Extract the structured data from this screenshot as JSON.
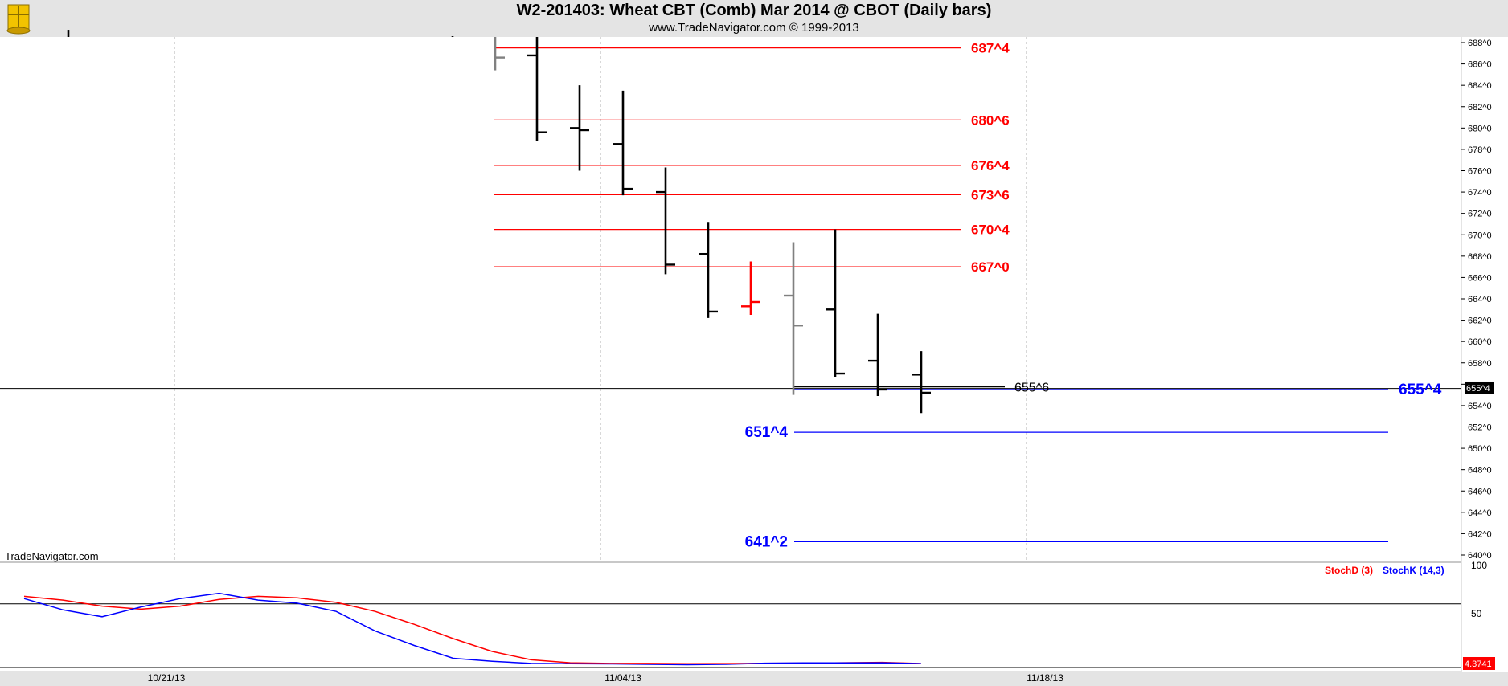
{
  "header": {
    "title": "W2-201403:  Wheat CBT (Comb) Mar 2014 @ CBOT  (Daily bars)",
    "copyright": "www.TradeNavigator.com © 1999-2013"
  },
  "watermark": "TradeNavigator.com",
  "colors": {
    "background": "#ffffff",
    "header_bg": "#e4e4e4",
    "up_bar": "#000000",
    "highlight_bar": "#ff0000",
    "gray_bar": "#808080",
    "resistance": "#ff0000",
    "support": "#0000ff",
    "stochD": "#ff0000",
    "stochK": "#0000ff"
  },
  "chart_data": [
    {
      "type": "ohlc",
      "title": "W2-201403:  Wheat CBT (Comb) Mar 2014 @ CBOT  (Daily bars)",
      "price_format": "eighths",
      "ylim": [
        638.5,
        689.5
      ],
      "x_tick_labels": [
        "10/21/13",
        "11/04/13",
        "11/18/13"
      ],
      "y_tick_labels": [
        "688^0",
        "686^0",
        "684^0",
        "682^0",
        "680^0",
        "678^0",
        "676^0",
        "674^0",
        "672^0",
        "670^0",
        "668^0",
        "666^0",
        "664^0",
        "662^0",
        "660^0",
        "658^0",
        "656^0",
        "654^0",
        "652^0",
        "650^0",
        "648^0",
        "646^0",
        "644^0",
        "642^0",
        "640^0"
      ],
      "bars": [
        {
          "date": "10/18/13",
          "o": null,
          "h": 689.8,
          "l": 689.2,
          "c": null,
          "color": "black"
        },
        {
          "date": "10/30/13",
          "o": null,
          "h": 689.5,
          "l": 688.6,
          "c": null,
          "color": "black"
        },
        {
          "date": "10/31/13",
          "o": null,
          "h": 689.9,
          "l": 685.4,
          "c": 686.6,
          "color": "gray"
        },
        {
          "date": "11/01/13",
          "o": 686.8,
          "h": 689.5,
          "l": 678.8,
          "c": 679.6,
          "color": "black"
        },
        {
          "date": "11/04/13",
          "o": 680.0,
          "h": 684.0,
          "l": 676.0,
          "c": 679.8,
          "color": "black"
        },
        {
          "date": "11/05/13",
          "o": 678.5,
          "h": 683.5,
          "l": 673.7,
          "c": 674.3,
          "color": "black"
        },
        {
          "date": "11/06/13",
          "o": 674.0,
          "h": 676.3,
          "l": 666.3,
          "c": 667.2,
          "color": "black"
        },
        {
          "date": "11/07/13",
          "o": 668.2,
          "h": 671.2,
          "l": 662.2,
          "c": 662.8,
          "color": "black"
        },
        {
          "date": "11/08/13",
          "o": 663.3,
          "h": 667.5,
          "l": 662.5,
          "c": 663.7,
          "color": "red"
        },
        {
          "date": "11/11/13",
          "o": 664.3,
          "h": 669.3,
          "l": 655.0,
          "c": 661.5,
          "color": "gray"
        },
        {
          "date": "11/12/13",
          "o": 663.0,
          "h": 670.5,
          "l": 656.7,
          "c": 657.0,
          "color": "black"
        },
        {
          "date": "11/13/13",
          "o": 658.2,
          "h": 662.6,
          "l": 654.9,
          "c": 655.5,
          "color": "black"
        },
        {
          "date": "11/14/13",
          "o": 656.9,
          "h": 659.1,
          "l": 653.3,
          "c": 655.2,
          "color": "black"
        }
      ],
      "price_levels": [
        {
          "label": "687^4",
          "value": 687.5,
          "color": "#ff0000"
        },
        {
          "label": "680^6",
          "value": 680.75,
          "color": "#ff0000"
        },
        {
          "label": "676^4",
          "value": 676.5,
          "color": "#ff0000"
        },
        {
          "label": "673^6",
          "value": 673.75,
          "color": "#ff0000"
        },
        {
          "label": "670^4",
          "value": 670.5,
          "color": "#ff0000"
        },
        {
          "label": "667^0",
          "value": 667.0,
          "color": "#ff0000"
        },
        {
          "label": "655^4",
          "value": 655.5,
          "color": "#0000ff"
        },
        {
          "label": "651^4",
          "value": 651.5,
          "color": "#0000ff"
        },
        {
          "label": "641^2",
          "value": 641.25,
          "color": "#0000ff"
        }
      ],
      "reference_line": {
        "label": "655^6",
        "value": 655.75,
        "color": "#000000"
      },
      "last_price": {
        "label": "655^4",
        "value": 655.5
      }
    },
    {
      "type": "line",
      "title": "",
      "ylim": [
        0,
        100
      ],
      "y_tick_labels": [
        "100",
        "50"
      ],
      "last_value": "4.3741",
      "legend_position": "top-right",
      "series": [
        {
          "name": "StochD (3)",
          "color": "#ff0000",
          "values": [
            90,
            85,
            77,
            73,
            77,
            86,
            90,
            88,
            82,
            70,
            53,
            34,
            17,
            6,
            2,
            1.2,
            1.2,
            0.8,
            1.0,
            1.3,
            1.5,
            2,
            2.5,
            1.0
          ]
        },
        {
          "name": "StochK (14,3)",
          "color": "#0000ff",
          "values": [
            87,
            72,
            63,
            76,
            87,
            94,
            85,
            81,
            70,
            44,
            25,
            8,
            4,
            1.2,
            0.8,
            0.5,
            0,
            -0.5,
            0,
            1.5,
            1.8,
            1.8,
            2.0,
            0.8
          ]
        }
      ]
    }
  ]
}
